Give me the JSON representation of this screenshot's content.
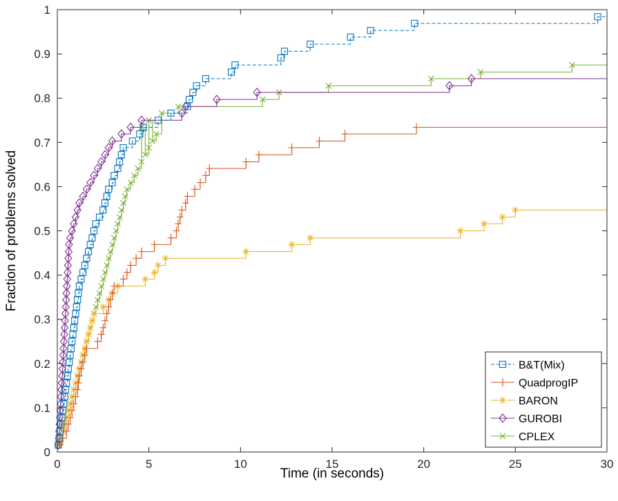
{
  "chart_data": {
    "type": "line",
    "title": "",
    "xlabel": "Time (in seconds)",
    "ylabel": "Fraction of problems solved",
    "xlim": [
      0,
      30
    ],
    "ylim": [
      0,
      1
    ],
    "x_ticks": [
      "0",
      "5",
      "10",
      "15",
      "20",
      "25",
      "30"
    ],
    "y_ticks": [
      "0",
      "0.1",
      "0.2",
      "0.3",
      "0.4",
      "0.5",
      "0.6",
      "0.7",
      "0.8",
      "0.9",
      "1"
    ],
    "step": true,
    "grid": false,
    "legend_position": "bottom-right",
    "series": [
      {
        "name": "B&T(Mix)",
        "color": "#0072BD",
        "dash": "dashed",
        "marker": "square",
        "points": [
          [
            0.05,
            0.016
          ],
          [
            0.1,
            0.031
          ],
          [
            0.15,
            0.047
          ],
          [
            0.2,
            0.063
          ],
          [
            0.25,
            0.078
          ],
          [
            0.3,
            0.094
          ],
          [
            0.35,
            0.109
          ],
          [
            0.4,
            0.125
          ],
          [
            0.45,
            0.141
          ],
          [
            0.5,
            0.156
          ],
          [
            0.55,
            0.172
          ],
          [
            0.6,
            0.188
          ],
          [
            0.65,
            0.203
          ],
          [
            0.7,
            0.219
          ],
          [
            0.75,
            0.234
          ],
          [
            0.8,
            0.25
          ],
          [
            0.85,
            0.266
          ],
          [
            0.9,
            0.281
          ],
          [
            0.95,
            0.297
          ],
          [
            1.0,
            0.313
          ],
          [
            1.05,
            0.328
          ],
          [
            1.1,
            0.344
          ],
          [
            1.15,
            0.359
          ],
          [
            1.2,
            0.375
          ],
          [
            1.3,
            0.391
          ],
          [
            1.4,
            0.406
          ],
          [
            1.5,
            0.422
          ],
          [
            1.6,
            0.438
          ],
          [
            1.7,
            0.453
          ],
          [
            1.8,
            0.469
          ],
          [
            1.9,
            0.484
          ],
          [
            2.0,
            0.5
          ],
          [
            2.1,
            0.516
          ],
          [
            2.3,
            0.531
          ],
          [
            2.5,
            0.547
          ],
          [
            2.6,
            0.563
          ],
          [
            2.7,
            0.578
          ],
          [
            2.8,
            0.594
          ],
          [
            3.0,
            0.609
          ],
          [
            3.1,
            0.625
          ],
          [
            3.3,
            0.641
          ],
          [
            3.4,
            0.656
          ],
          [
            3.5,
            0.672
          ],
          [
            3.6,
            0.688
          ],
          [
            4.1,
            0.703
          ],
          [
            4.5,
            0.719
          ],
          [
            4.7,
            0.734
          ],
          [
            5.5,
            0.75
          ],
          [
            6.2,
            0.766
          ],
          [
            7.1,
            0.781
          ],
          [
            7.2,
            0.797
          ],
          [
            7.4,
            0.813
          ],
          [
            7.6,
            0.828
          ],
          [
            8.1,
            0.844
          ],
          [
            9.5,
            0.859
          ],
          [
            9.7,
            0.875
          ],
          [
            12.2,
            0.891
          ],
          [
            12.4,
            0.906
          ],
          [
            13.8,
            0.922
          ],
          [
            16.0,
            0.938
          ],
          [
            17.1,
            0.953
          ],
          [
            19.5,
            0.969
          ],
          [
            29.5,
            0.984
          ]
        ]
      },
      {
        "name": "QuadprogIP",
        "color": "#D95319",
        "dash": "solid",
        "marker": "plus",
        "points": [
          [
            0.1,
            0.016
          ],
          [
            0.3,
            0.031
          ],
          [
            0.5,
            0.047
          ],
          [
            0.6,
            0.063
          ],
          [
            0.7,
            0.078
          ],
          [
            0.8,
            0.094
          ],
          [
            0.9,
            0.109
          ],
          [
            1.0,
            0.125
          ],
          [
            1.1,
            0.141
          ],
          [
            1.15,
            0.156
          ],
          [
            1.2,
            0.172
          ],
          [
            1.3,
            0.188
          ],
          [
            1.4,
            0.203
          ],
          [
            1.5,
            0.219
          ],
          [
            1.6,
            0.234
          ],
          [
            2.2,
            0.25
          ],
          [
            2.4,
            0.266
          ],
          [
            2.5,
            0.281
          ],
          [
            2.6,
            0.297
          ],
          [
            2.7,
            0.313
          ],
          [
            2.8,
            0.328
          ],
          [
            2.9,
            0.344
          ],
          [
            3.0,
            0.359
          ],
          [
            3.1,
            0.375
          ],
          [
            3.6,
            0.391
          ],
          [
            3.8,
            0.406
          ],
          [
            4.0,
            0.422
          ],
          [
            4.3,
            0.438
          ],
          [
            4.6,
            0.453
          ],
          [
            5.3,
            0.469
          ],
          [
            6.2,
            0.484
          ],
          [
            6.5,
            0.5
          ],
          [
            6.6,
            0.516
          ],
          [
            6.7,
            0.531
          ],
          [
            6.8,
            0.547
          ],
          [
            7.0,
            0.563
          ],
          [
            7.1,
            0.578
          ],
          [
            7.5,
            0.594
          ],
          [
            7.8,
            0.609
          ],
          [
            8.1,
            0.625
          ],
          [
            8.3,
            0.641
          ],
          [
            10.3,
            0.656
          ],
          [
            11.0,
            0.672
          ],
          [
            12.8,
            0.688
          ],
          [
            14.3,
            0.703
          ],
          [
            15.7,
            0.719
          ],
          [
            19.6,
            0.734
          ]
        ]
      },
      {
        "name": "BARON",
        "color": "#EDB120",
        "dash": "solid",
        "marker": "asterisk",
        "points": [
          [
            0.1,
            0.016
          ],
          [
            0.2,
            0.031
          ],
          [
            0.3,
            0.047
          ],
          [
            0.4,
            0.063
          ],
          [
            0.5,
            0.078
          ],
          [
            0.6,
            0.094
          ],
          [
            0.7,
            0.109
          ],
          [
            0.8,
            0.125
          ],
          [
            0.9,
            0.141
          ],
          [
            1.0,
            0.156
          ],
          [
            1.1,
            0.172
          ],
          [
            1.2,
            0.188
          ],
          [
            1.3,
            0.203
          ],
          [
            1.4,
            0.219
          ],
          [
            1.5,
            0.234
          ],
          [
            1.6,
            0.25
          ],
          [
            1.7,
            0.266
          ],
          [
            1.8,
            0.281
          ],
          [
            1.9,
            0.297
          ],
          [
            2.0,
            0.313
          ],
          [
            2.5,
            0.328
          ],
          [
            2.8,
            0.344
          ],
          [
            3.0,
            0.359
          ],
          [
            3.3,
            0.375
          ],
          [
            4.8,
            0.391
          ],
          [
            5.3,
            0.406
          ],
          [
            5.5,
            0.422
          ],
          [
            5.9,
            0.438
          ],
          [
            10.3,
            0.453
          ],
          [
            12.8,
            0.469
          ],
          [
            13.8,
            0.484
          ],
          [
            22.0,
            0.5
          ],
          [
            23.3,
            0.516
          ],
          [
            24.3,
            0.531
          ],
          [
            25.0,
            0.547
          ]
        ]
      },
      {
        "name": "GUROBI",
        "color": "#7E2F8E",
        "dash": "solid",
        "marker": "diamond",
        "points": [
          [
            0.05,
            0.016
          ],
          [
            0.08,
            0.031
          ],
          [
            0.1,
            0.047
          ],
          [
            0.12,
            0.063
          ],
          [
            0.14,
            0.078
          ],
          [
            0.16,
            0.094
          ],
          [
            0.18,
            0.109
          ],
          [
            0.2,
            0.125
          ],
          [
            0.22,
            0.141
          ],
          [
            0.24,
            0.156
          ],
          [
            0.26,
            0.172
          ],
          [
            0.28,
            0.188
          ],
          [
            0.3,
            0.203
          ],
          [
            0.32,
            0.219
          ],
          [
            0.34,
            0.234
          ],
          [
            0.36,
            0.25
          ],
          [
            0.38,
            0.266
          ],
          [
            0.4,
            0.281
          ],
          [
            0.42,
            0.297
          ],
          [
            0.44,
            0.313
          ],
          [
            0.46,
            0.328
          ],
          [
            0.48,
            0.344
          ],
          [
            0.5,
            0.359
          ],
          [
            0.52,
            0.375
          ],
          [
            0.54,
            0.391
          ],
          [
            0.56,
            0.406
          ],
          [
            0.58,
            0.422
          ],
          [
            0.6,
            0.438
          ],
          [
            0.62,
            0.453
          ],
          [
            0.64,
            0.469
          ],
          [
            0.7,
            0.484
          ],
          [
            0.8,
            0.5
          ],
          [
            0.9,
            0.516
          ],
          [
            1.0,
            0.531
          ],
          [
            1.1,
            0.547
          ],
          [
            1.2,
            0.563
          ],
          [
            1.4,
            0.578
          ],
          [
            1.6,
            0.594
          ],
          [
            1.8,
            0.609
          ],
          [
            2.0,
            0.625
          ],
          [
            2.2,
            0.641
          ],
          [
            2.4,
            0.656
          ],
          [
            2.6,
            0.672
          ],
          [
            2.8,
            0.688
          ],
          [
            3.0,
            0.703
          ],
          [
            3.5,
            0.719
          ],
          [
            4.0,
            0.734
          ],
          [
            4.6,
            0.75
          ],
          [
            6.8,
            0.766
          ],
          [
            7.0,
            0.781
          ],
          [
            8.7,
            0.797
          ],
          [
            10.9,
            0.813
          ],
          [
            21.4,
            0.828
          ],
          [
            22.6,
            0.844
          ]
        ]
      },
      {
        "name": "CPLEX",
        "color": "#77AC30",
        "dash": "solid",
        "marker": "x",
        "points": [
          [
            0.1,
            0.016
          ],
          [
            0.2,
            0.031
          ],
          [
            0.3,
            0.047
          ],
          [
            0.4,
            0.063
          ],
          [
            0.5,
            0.078
          ],
          [
            0.6,
            0.094
          ],
          [
            0.7,
            0.109
          ],
          [
            0.8,
            0.125
          ],
          [
            0.9,
            0.141
          ],
          [
            1.0,
            0.156
          ],
          [
            1.1,
            0.172
          ],
          [
            1.2,
            0.188
          ],
          [
            1.3,
            0.203
          ],
          [
            1.4,
            0.219
          ],
          [
            1.5,
            0.234
          ],
          [
            1.6,
            0.25
          ],
          [
            1.7,
            0.266
          ],
          [
            1.8,
            0.281
          ],
          [
            1.9,
            0.297
          ],
          [
            2.0,
            0.313
          ],
          [
            2.1,
            0.328
          ],
          [
            2.2,
            0.344
          ],
          [
            2.3,
            0.359
          ],
          [
            2.4,
            0.375
          ],
          [
            2.5,
            0.391
          ],
          [
            2.6,
            0.406
          ],
          [
            2.7,
            0.422
          ],
          [
            2.8,
            0.438
          ],
          [
            2.9,
            0.453
          ],
          [
            3.0,
            0.469
          ],
          [
            3.1,
            0.484
          ],
          [
            3.2,
            0.5
          ],
          [
            3.3,
            0.516
          ],
          [
            3.4,
            0.531
          ],
          [
            3.5,
            0.547
          ],
          [
            3.6,
            0.563
          ],
          [
            3.7,
            0.578
          ],
          [
            3.8,
            0.594
          ],
          [
            4.0,
            0.609
          ],
          [
            4.2,
            0.625
          ],
          [
            4.4,
            0.641
          ],
          [
            4.6,
            0.656
          ],
          [
            4.8,
            0.672
          ],
          [
            5.0,
            0.688
          ],
          [
            5.2,
            0.703
          ],
          [
            5.4,
            0.719
          ],
          [
            4.6,
            0.734
          ],
          [
            5.0,
            0.75
          ],
          [
            5.7,
            0.766
          ],
          [
            6.6,
            0.781
          ],
          [
            11.2,
            0.797
          ],
          [
            12.1,
            0.813
          ],
          [
            14.8,
            0.828
          ],
          [
            20.4,
            0.844
          ],
          [
            23.1,
            0.859
          ],
          [
            28.1,
            0.875
          ]
        ]
      }
    ]
  }
}
